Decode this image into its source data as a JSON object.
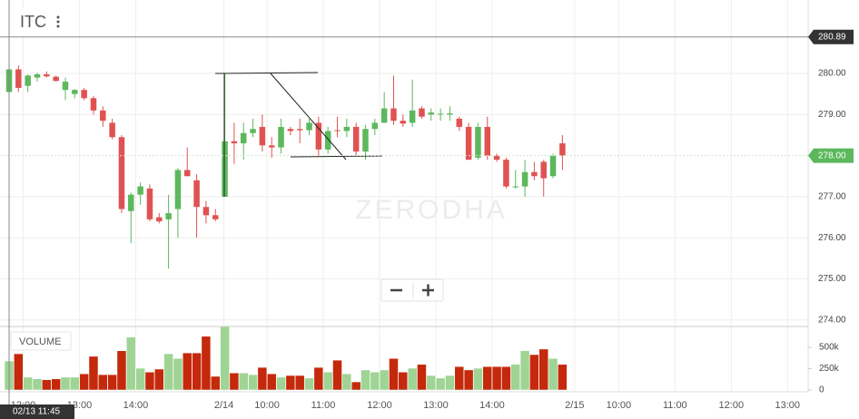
{
  "chart_data": {
    "type": "candlestick",
    "title": "ITC",
    "volume_label": "VOLUME",
    "watermark": "ZERODHA",
    "x": [
      0,
      1,
      2,
      3,
      4,
      5,
      6,
      7,
      8,
      9,
      10,
      11,
      12,
      13,
      14,
      15,
      16,
      17,
      18,
      19,
      20,
      21,
      22,
      23,
      24,
      25,
      26,
      27,
      28,
      29,
      30,
      31,
      32,
      33,
      34,
      35,
      36,
      37,
      38,
      39,
      40,
      41,
      42,
      43,
      44,
      45,
      46,
      47,
      48,
      49,
      50,
      51,
      52,
      53,
      54,
      55,
      56,
      57,
      58,
      59
    ],
    "open": [
      279.55,
      280.1,
      279.7,
      279.9,
      279.98,
      279.92,
      279.6,
      279.5,
      279.6,
      279.4,
      279.1,
      278.8,
      278.45,
      276.65,
      277.05,
      277.2,
      276.5,
      276.45,
      276.7,
      277.65,
      277.4,
      276.75,
      276.55,
      277.0,
      278.35,
      278.3,
      278.55,
      278.7,
      278.25,
      278.2,
      278.65,
      278.65,
      278.62,
      278.8,
      278.15,
      278.62,
      278.6,
      278.7,
      278.1,
      278.65,
      278.8,
      279.15,
      278.85,
      278.8,
      279.15,
      279.0,
      279.0,
      279.0,
      278.9,
      278.7,
      277.95,
      278.7,
      278.0,
      277.9,
      277.25,
      277.25,
      277.6,
      277.85,
      277.5,
      278.3
    ],
    "high": [
      280.25,
      280.2,
      279.98,
      280.02,
      280.05,
      279.95,
      279.9,
      279.62,
      279.65,
      279.45,
      279.2,
      278.9,
      278.5,
      277.1,
      277.35,
      277.3,
      276.6,
      277.05,
      277.7,
      278.2,
      277.55,
      276.9,
      276.7,
      280.0,
      278.8,
      278.8,
      278.9,
      279.0,
      278.45,
      278.9,
      278.7,
      278.9,
      278.9,
      278.95,
      278.7,
      278.95,
      278.9,
      278.8,
      278.75,
      278.9,
      279.55,
      279.95,
      279.0,
      279.85,
      279.2,
      279.15,
      279.15,
      279.2,
      278.95,
      278.8,
      278.8,
      278.95,
      278.05,
      277.95,
      277.65,
      277.9,
      277.85,
      277.9,
      278.05,
      278.5
    ],
    "low": [
      279.45,
      279.55,
      279.55,
      279.8,
      279.9,
      279.8,
      279.35,
      279.4,
      279.35,
      279.0,
      278.7,
      278.4,
      276.6,
      275.87,
      276.8,
      276.4,
      276.35,
      275.25,
      276.0,
      277.5,
      276.0,
      276.35,
      276.4,
      277.0,
      277.8,
      277.9,
      278.45,
      278.1,
      277.95,
      278.05,
      278.5,
      278.3,
      278.5,
      278.0,
      278.05,
      278.45,
      278.45,
      278.0,
      277.9,
      278.5,
      278.8,
      278.75,
      278.7,
      278.7,
      278.9,
      278.85,
      278.85,
      278.85,
      278.6,
      277.9,
      277.9,
      277.9,
      277.85,
      277.2,
      277.2,
      277.0,
      277.4,
      277.0,
      277.45,
      277.65
    ],
    "close": [
      280.1,
      279.65,
      279.95,
      279.98,
      279.93,
      279.82,
      279.8,
      279.6,
      279.4,
      279.1,
      278.85,
      278.45,
      276.7,
      277.05,
      277.25,
      276.45,
      276.4,
      276.6,
      277.65,
      277.5,
      276.75,
      276.55,
      276.45,
      278.35,
      278.3,
      278.55,
      278.65,
      278.25,
      278.2,
      278.7,
      278.6,
      278.62,
      278.8,
      278.15,
      278.6,
      278.6,
      278.7,
      278.1,
      278.65,
      278.8,
      279.15,
      278.85,
      278.78,
      279.1,
      278.95,
      279.05,
      279.02,
      279.03,
      278.7,
      277.9,
      278.7,
      278.0,
      277.9,
      277.25,
      277.25,
      277.6,
      277.5,
      277.45,
      278.0,
      278.0
    ],
    "volume": [
      340000,
      425000,
      150000,
      130000,
      120000,
      130000,
      150000,
      150000,
      190000,
      395000,
      180000,
      180000,
      460000,
      620000,
      255000,
      210000,
      245000,
      425000,
      370000,
      435000,
      435000,
      630000,
      160000,
      745000,
      200000,
      200000,
      180000,
      265000,
      190000,
      150000,
      170000,
      170000,
      140000,
      265000,
      210000,
      350000,
      190000,
      95000,
      235000,
      210000,
      235000,
      370000,
      210000,
      255000,
      300000,
      170000,
      140000,
      170000,
      275000,
      235000,
      255000,
      275000,
      275000,
      275000,
      300000,
      460000,
      415000,
      480000,
      370000,
      300000
    ],
    "up_color": "#5cb85c",
    "down_color": "#e05252",
    "volume_up_color": "#9fd494",
    "volume_down_color": "#c4290c",
    "xlim": [
      -0.97,
      85.2
    ],
    "xticks": [
      {
        "value": 1.5,
        "label": "12:00"
      },
      {
        "value": 7.5,
        "label": "13:00"
      },
      {
        "value": 13.5,
        "label": "14:00"
      },
      {
        "value": 22.9,
        "label": "2/14"
      },
      {
        "value": 27.5,
        "label": "10:00"
      },
      {
        "value": 33.5,
        "label": "11:00"
      },
      {
        "value": 39.5,
        "label": "12:00"
      },
      {
        "value": 45.5,
        "label": "13:00"
      },
      {
        "value": 51.5,
        "label": "14:00"
      },
      {
        "value": 60.3,
        "label": "2/15"
      },
      {
        "value": 65,
        "label": "10:00"
      },
      {
        "value": 71,
        "label": "11:00"
      },
      {
        "value": 77,
        "label": "12:00"
      },
      {
        "value": 83,
        "label": "13:00"
      }
    ],
    "ylim": [
      273.84,
      281.79
    ],
    "yticks": [
      {
        "value": 274,
        "label": "274.00"
      },
      {
        "value": 275,
        "label": "275.00"
      },
      {
        "value": 276,
        "label": "276.00"
      },
      {
        "value": 277,
        "label": "277.00"
      },
      {
        "value": 279,
        "label": "279.00"
      },
      {
        "value": 280,
        "label": "280.00"
      }
    ],
    "y2lim": [
      0,
      745000
    ],
    "y2ticks": [
      0,
      {
        "value": 250000,
        "label": "250k"
      },
      {
        "value": 500000,
        "label": "500k"
      }
    ],
    "grid": true,
    "crosshair": {
      "x": {
        "value": 0,
        "label": "02/13 11:45"
      },
      "y": 280.89
    },
    "last_price": {
      "value": 278,
      "label": "278.00"
    }
  }
}
